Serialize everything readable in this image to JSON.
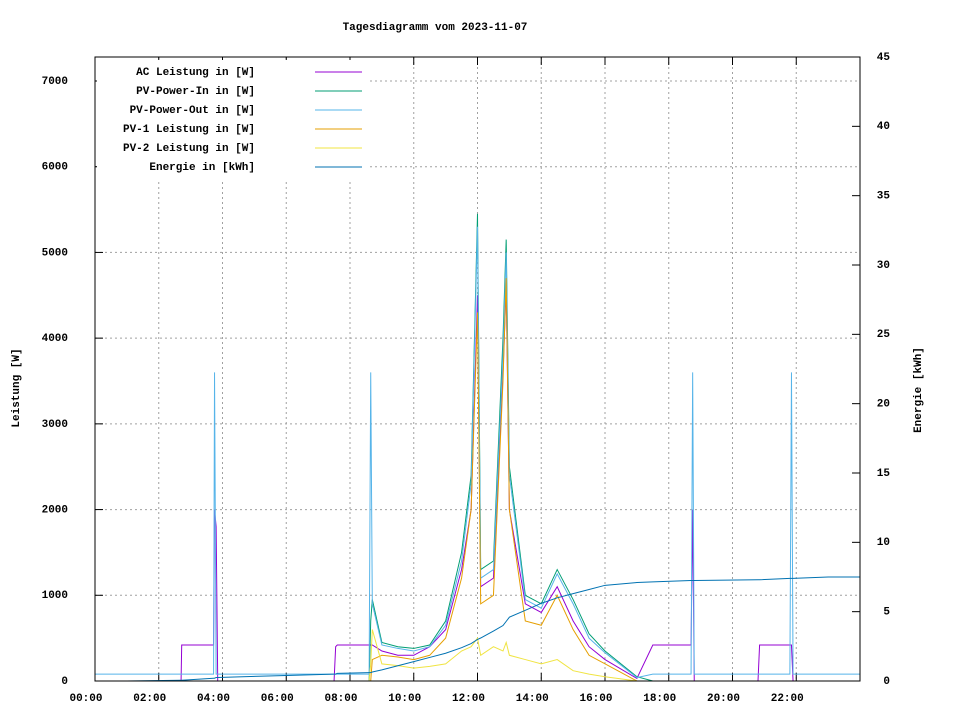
{
  "chart_data": {
    "type": "line",
    "title": "Tagesdiagramm vom 2023-11-07",
    "y_label": "Leistung [W]",
    "y2_label": "Energie [kWh]",
    "x": [
      0,
      1,
      2.7,
      2.72,
      3.72,
      3.75,
      3.8,
      3.85,
      6,
      7.5,
      7.55,
      7.6,
      8.6,
      8.65,
      8.7,
      9,
      9.5,
      10,
      10.5,
      11,
      11.5,
      11.8,
      12,
      12.1,
      12.5,
      12.8,
      12.9,
      13,
      13.5,
      14,
      14.5,
      15,
      15.5,
      16,
      17,
      17.5,
      18.7,
      18.75,
      18.8,
      20.8,
      20.85,
      21.8,
      21.85,
      21.9,
      23,
      24
    ],
    "xlim": [
      0,
      24
    ],
    "xticks": [
      {
        "value": 0,
        "label": "00:00"
      },
      {
        "value": 2,
        "label": "02:00"
      },
      {
        "value": 4,
        "label": "04:00"
      },
      {
        "value": 6,
        "label": "06:00"
      },
      {
        "value": 8,
        "label": "08:00"
      },
      {
        "value": 10,
        "label": "10:00"
      },
      {
        "value": 12,
        "label": "12:00"
      },
      {
        "value": 14,
        "label": "14:00"
      },
      {
        "value": 16,
        "label": "16:00"
      },
      {
        "value": 18,
        "label": "18:00"
      },
      {
        "value": 20,
        "label": "20:00"
      },
      {
        "value": 22,
        "label": "22:00"
      }
    ],
    "ylim": [
      0,
      7280
    ],
    "yticks": [
      0,
      1000,
      2000,
      3000,
      4000,
      5000,
      6000,
      7000
    ],
    "y2lim": [
      0,
      45
    ],
    "y2ticks": [
      0,
      5,
      10,
      15,
      20,
      25,
      30,
      35,
      40,
      45
    ],
    "grid": true,
    "legend": "top-left",
    "series": [
      {
        "name": "AC Leistung in [W]",
        "color": "#9400d3",
        "values": [
          0,
          0,
          0,
          420,
          420,
          2000,
          1800,
          0,
          0,
          0,
          400,
          420,
          420,
          420,
          420,
          350,
          300,
          300,
          400,
          600,
          1300,
          2000,
          4500,
          1100,
          1200,
          3600,
          4600,
          2000,
          900,
          800,
          1100,
          700,
          400,
          250,
          30,
          420,
          420,
          2000,
          0,
          0,
          420,
          420,
          420,
          0,
          0,
          0
        ]
      },
      {
        "name": "PV-Power-In in [W]",
        "color": "#009e73",
        "values": [
          0,
          0,
          0,
          0,
          0,
          0,
          0,
          0,
          0,
          0,
          0,
          0,
          0,
          700,
          950,
          450,
          400,
          380,
          420,
          700,
          1500,
          2400,
          5450,
          1300,
          1400,
          4000,
          5150,
          2500,
          1000,
          900,
          1300,
          950,
          550,
          350,
          50,
          0,
          0,
          0,
          0,
          0,
          0,
          0,
          0,
          0,
          0,
          0
        ]
      },
      {
        "name": "PV-Power-Out in [W]",
        "color": "#56b4e9",
        "values": [
          80,
          80,
          80,
          80,
          80,
          3600,
          80,
          80,
          80,
          80,
          80,
          80,
          80,
          3600,
          900,
          420,
          380,
          350,
          400,
          650,
          1400,
          2300,
          5300,
          1200,
          1300,
          3800,
          5000,
          2400,
          950,
          850,
          1250,
          900,
          500,
          330,
          40,
          80,
          80,
          3600,
          80,
          80,
          80,
          80,
          3600,
          80,
          80,
          80
        ]
      },
      {
        "name": "PV-1 Leistung in [W]",
        "color": "#e69f00",
        "values": [
          0,
          0,
          0,
          0,
          0,
          0,
          0,
          0,
          0,
          0,
          0,
          0,
          0,
          0,
          250,
          300,
          280,
          250,
          300,
          500,
          1200,
          2000,
          4300,
          900,
          1000,
          3500,
          4700,
          2000,
          700,
          650,
          1000,
          600,
          300,
          200,
          0,
          0,
          0,
          0,
          0,
          0,
          0,
          0,
          0,
          0,
          0,
          0
        ]
      },
      {
        "name": "PV-2 Leistung in [W]",
        "color": "#f0e442",
        "values": [
          0,
          0,
          0,
          0,
          0,
          0,
          0,
          0,
          0,
          0,
          0,
          0,
          0,
          200,
          600,
          200,
          180,
          150,
          170,
          200,
          350,
          400,
          500,
          300,
          400,
          350,
          450,
          300,
          250,
          200,
          250,
          120,
          80,
          50,
          0,
          0,
          0,
          0,
          0,
          0,
          0,
          0,
          0,
          0,
          0,
          0
        ]
      },
      {
        "name": "Energie in [kWh]",
        "color": "#0072b2",
        "axis": "y2",
        "values": [
          0,
          0,
          0.05,
          0.05,
          0.2,
          0.2,
          0.25,
          0.25,
          0.4,
          0.5,
          0.5,
          0.55,
          0.6,
          0.6,
          0.65,
          0.8,
          1.1,
          1.4,
          1.7,
          2,
          2.4,
          2.7,
          3,
          3.1,
          3.6,
          4,
          4.3,
          4.6,
          5.1,
          5.6,
          6,
          6.3,
          6.6,
          6.9,
          7.1,
          7.15,
          7.25,
          7.25,
          7.25,
          7.3,
          7.3,
          7.4,
          7.4,
          7.4,
          7.5,
          7.5
        ]
      }
    ]
  }
}
